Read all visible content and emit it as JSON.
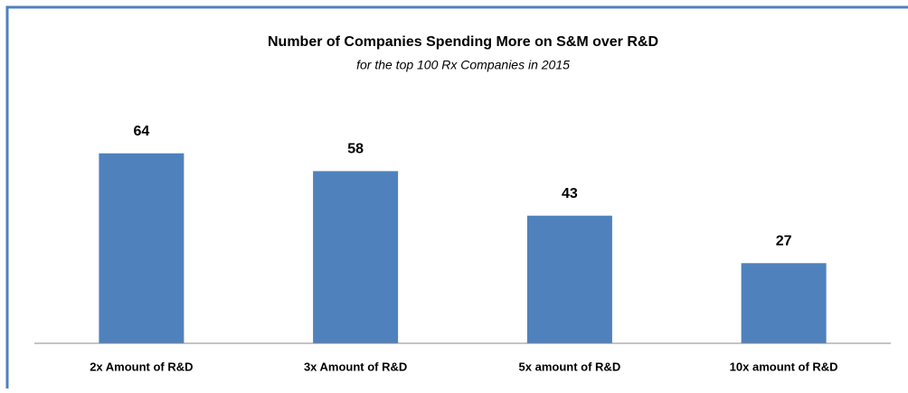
{
  "chart_data": {
    "type": "bar",
    "title": "Number of Companies Spending More on S&M over R&D",
    "subtitle": "for the top 100 Rx Companies in 2015",
    "categories": [
      "2x Amount of R&D",
      "3x Amount of R&D",
      "5x amount of R&D",
      "10x amount of R&D"
    ],
    "values": [
      64,
      58,
      43,
      27
    ],
    "color": "#4f81bd",
    "ylim": [
      0,
      70
    ]
  }
}
